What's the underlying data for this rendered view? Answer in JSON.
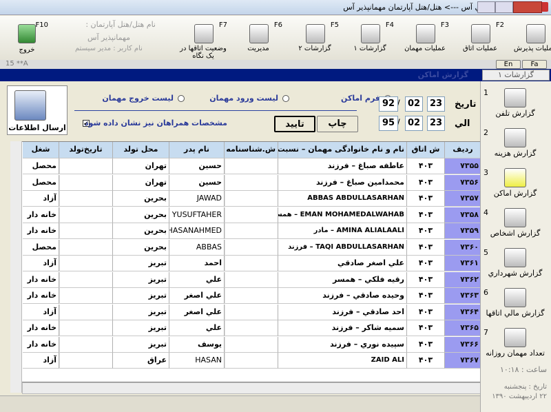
{
  "window": {
    "title": "نرم افزار هتل داري آس  ---> هتل/هتل آپارتمان مهمانپذير آس"
  },
  "toolbar": [
    {
      "key": "F1",
      "label": "عمليات پذيرش"
    },
    {
      "key": "F2",
      "label": "عمليات اتاق"
    },
    {
      "key": "F3",
      "label": "عمليات مهمان"
    },
    {
      "key": "F4",
      "label": "گزارشات ۱"
    },
    {
      "key": "F5",
      "label": "گزارشات ۲"
    },
    {
      "key": "F6",
      "label": "مديريت"
    },
    {
      "key": "F7",
      "label": "وضعيت اتاقها در يک نگاه"
    }
  ],
  "hotel_info": {
    "label": "نام هتل/هتل آپارتمان :",
    "name": "مهمانپذير آس",
    "user": "نام کاربر : مدير سيستم"
  },
  "exit": {
    "key": "F10",
    "label": "خروج"
  },
  "status_code": "15 **A",
  "lang_tabs": [
    "En",
    "Fa"
  ],
  "tab_title": "گزارشات ۱",
  "panel_title": "گزارش اماکن",
  "filters": {
    "radios": [
      {
        "label": "فرم اماکن",
        "checked": true
      },
      {
        "label": "ليست ورود مهمان",
        "checked": false
      },
      {
        "label": "ليست خروج مهمان",
        "checked": false
      }
    ],
    "separator": "/",
    "from_label": "تاريخ",
    "from": [
      "23",
      "02",
      "92"
    ],
    "to_label": "الي",
    "to": [
      "23",
      "02",
      "95"
    ],
    "print": "چاپ",
    "confirm": "تاييد",
    "companions": {
      "label": "مشخصات همراهان نيز نشان داده شود",
      "checked": true
    },
    "send": "ارسال اطلاعات"
  },
  "table": {
    "columns": [
      "رديف",
      "ش اتاق",
      "نام و نام خانوادگی مهمان – نسبت",
      "ش.شناسنامه",
      "نام پدر",
      "محل تولد",
      "تاريخ‌تولد",
      "شغل"
    ],
    "rows": [
      [
        "۷۳۵۵",
        "۴۰۳",
        "عاطفه صباغ – فرزند",
        null,
        "حسين",
        "تهران",
        null,
        "محصل"
      ],
      [
        "۷۳۵۶",
        "۴۰۳",
        "محمدامين صباغ – فرزند",
        null,
        "حسين",
        "تهران",
        null,
        "محصل"
      ],
      [
        "۷۳۵۷",
        "۴۰۳",
        "ABBAS ABDULLASARHAN",
        null,
        "JAWAD",
        "بحرين",
        null,
        "آزاد"
      ],
      [
        "۷۳۵۸",
        "۴۰۳",
        "EMAN MOHAMEDALWAHAB – همسر",
        null,
        "YUSUFTAHER",
        "بحرين",
        null,
        "خانه دار"
      ],
      [
        "۷۳۵۹",
        "۴۰۳",
        "AMINA ALIALAALI – مادر",
        null,
        "HASANAHMED",
        "بحرين",
        null,
        "خانه دار"
      ],
      [
        "۷۳۶۰",
        "۴۰۳",
        "TAQI ABDULLASARHAN – فرزند",
        null,
        "ABBAS",
        "بحرين",
        null,
        "محصل"
      ],
      [
        "۷۳۶۱",
        "۴۰۳",
        "علي اصغر صادقي",
        null,
        "احمد",
        "تبريز",
        null,
        "آزاد"
      ],
      [
        "۷۳۶۲",
        "۴۰۳",
        "رقيه فلکي – همسر",
        null,
        "علي",
        "تبريز",
        null,
        "خانه دار"
      ],
      [
        "۷۳۶۳",
        "۴۰۳",
        "وحيده صادقي – فرزند",
        null,
        "علي اصغر",
        "تبريز",
        null,
        "خانه دار"
      ],
      [
        "۷۳۶۴",
        "۴۰۳",
        "احد صادقي – فرزند",
        null,
        "علي اصغر",
        "تبريز",
        null,
        "آزاد"
      ],
      [
        "۷۳۶۵",
        "۴۰۳",
        "سميه شاکر – فرزند",
        null,
        "علي",
        "تبريز",
        null,
        "خانه دار"
      ],
      [
        "۷۳۶۶",
        "۴۰۳",
        "سپيده نوري – فرزند",
        null,
        "يوسف",
        "تبريز",
        null,
        "خانه دار"
      ],
      [
        "۷۳۶۷",
        "۴۰۳",
        "ZAID ALI",
        null,
        "HASAN",
        "عراق",
        null,
        "آزاد"
      ]
    ]
  },
  "sidebar": {
    "items": [
      {
        "number": "1",
        "label": "گزارش تلفن"
      },
      {
        "number": "2",
        "label": "گزارش هزينه"
      },
      {
        "number": "3",
        "label": "گزارش اماکن"
      },
      {
        "number": "4",
        "label": "گزارش اشخاص"
      },
      {
        "number": "5",
        "label": "گزارش شهرداري"
      },
      {
        "number": "6",
        "label": "گزارش مالي اتاقها"
      },
      {
        "number": "7",
        "label": "تعداد مهمان روزانه"
      }
    ],
    "clock": "ساعت : ۱۰:۱۸",
    "date": "تاريخ : پنجشنبه",
    "date2": "۲۲ ارديبهشت ۱۳۹۰"
  }
}
